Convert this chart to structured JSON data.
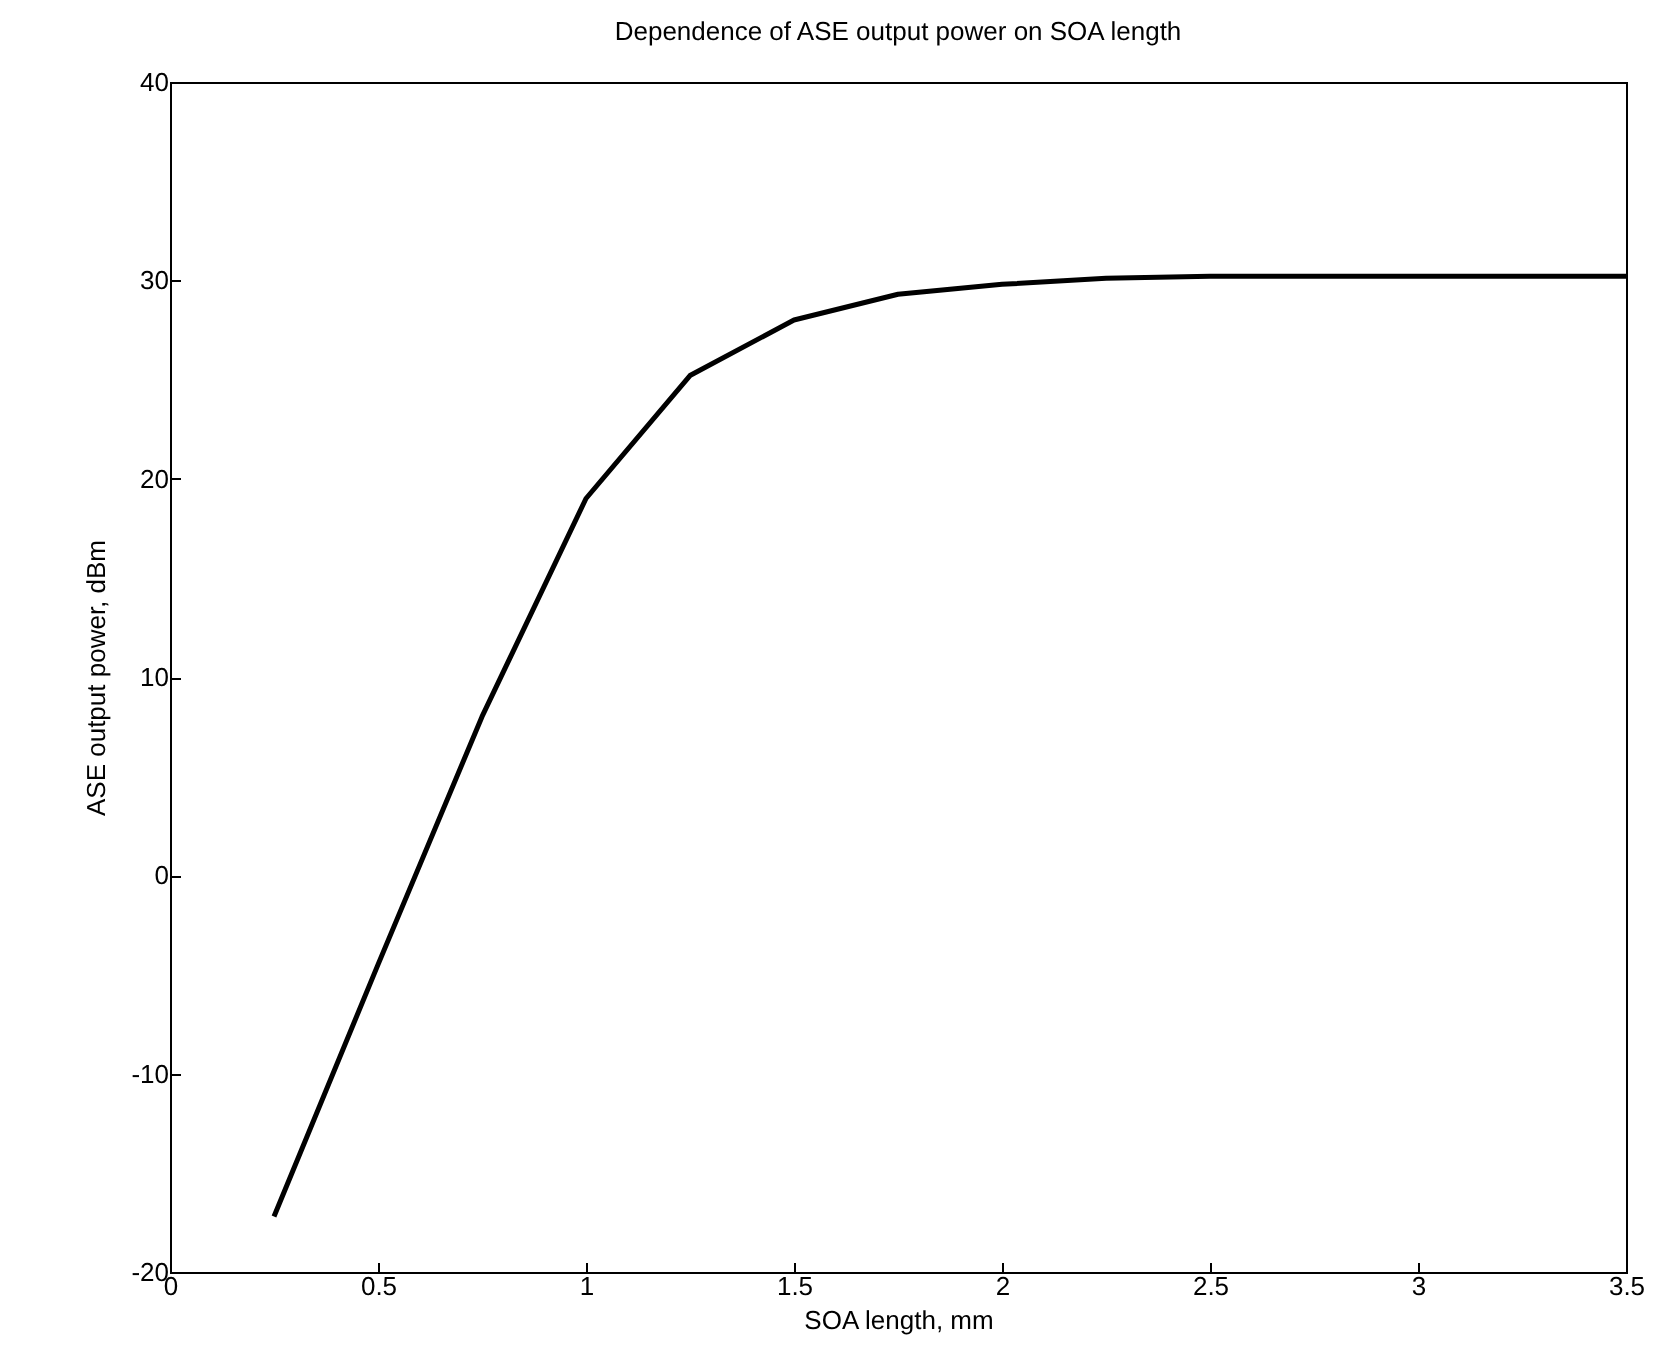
{
  "chart_data": {
    "type": "line",
    "title": "Dependence of ASE output power on SOA length",
    "xlabel": "SOA length, mm",
    "ylabel": "ASE output power, dBm",
    "x": [
      0.25,
      0.5,
      0.75,
      1.0,
      1.25,
      1.5,
      1.75,
      2.0,
      2.25,
      2.5,
      2.75,
      3.0,
      3.25,
      3.5
    ],
    "series": [
      {
        "color": "#000000",
        "values": [
          -17.2,
          -4.5,
          8.0,
          19.0,
          25.2,
          28.0,
          29.3,
          29.8,
          30.1,
          30.2,
          30.2,
          30.2,
          30.2,
          30.2
        ]
      }
    ],
    "xlim": [
      0,
      3.5
    ],
    "xticks": [
      0,
      0.5,
      1,
      1.5,
      2,
      2.5,
      3,
      3.5
    ],
    "ylim": [
      -20,
      40
    ],
    "yticks": [
      -20,
      -10,
      0,
      10,
      20,
      30,
      40
    ],
    "grid": false,
    "legend": false,
    "marker": "none",
    "line_style": "solid"
  }
}
